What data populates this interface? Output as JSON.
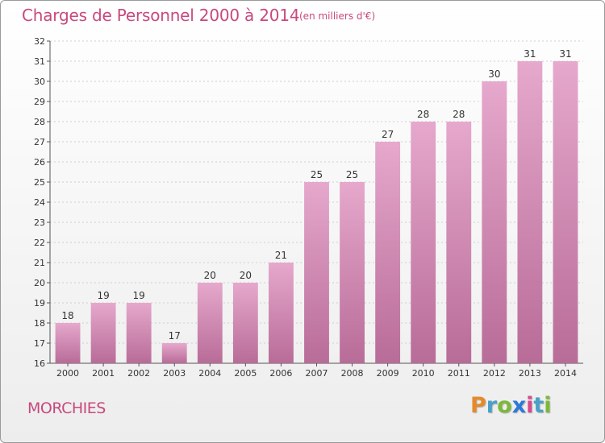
{
  "header": {
    "title": "Charges de Personnel 2000 à 2014",
    "subtitle": "(en milliers d'€)"
  },
  "footer": {
    "place": "MORCHIES",
    "logo_letters": [
      "P",
      "r",
      "o",
      "x",
      "i",
      "t",
      "i"
    ]
  },
  "colors": {
    "accent": "#c8497e",
    "bar_top": "#e6a8cc",
    "bar_bottom": "#b86c98",
    "logo": [
      "#e58a2a",
      "#4aa0c8",
      "#7cb83a",
      "#2a7ad8",
      "#d64a8a",
      "#4aa0c8",
      "#7cb83a"
    ]
  },
  "chart_data": {
    "type": "bar",
    "categories": [
      "2000",
      "2001",
      "2002",
      "2003",
      "2004",
      "2005",
      "2006",
      "2007",
      "2008",
      "2009",
      "2010",
      "2011",
      "2012",
      "2013",
      "2014"
    ],
    "values": [
      18,
      19,
      19,
      17,
      20,
      20,
      21,
      25,
      25,
      27,
      28,
      28,
      30,
      31,
      31
    ],
    "ylim": [
      16,
      32
    ],
    "yticks": [
      16,
      17,
      18,
      19,
      20,
      21,
      22,
      23,
      24,
      25,
      26,
      27,
      28,
      29,
      30,
      31,
      32
    ],
    "grid": true,
    "legend": "none"
  }
}
